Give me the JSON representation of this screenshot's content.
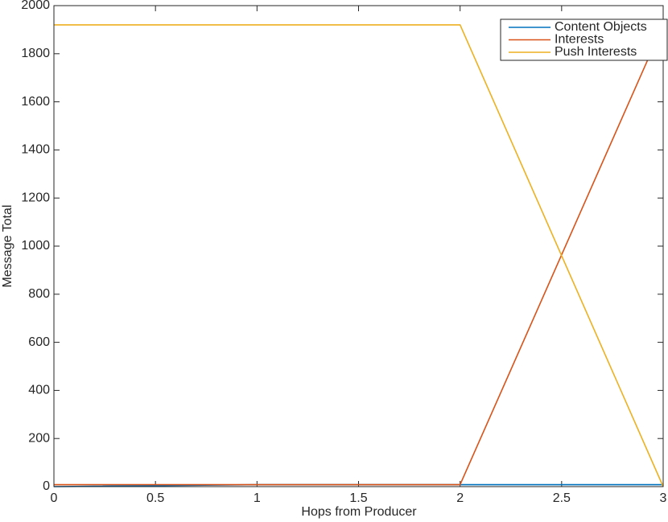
{
  "chart_data": {
    "type": "line",
    "xlabel": "Hops from Producer",
    "ylabel": "Message Total",
    "x": [
      0,
      1,
      2,
      3
    ],
    "series": [
      {
        "name": "Content Objects",
        "color": "#0072bd",
        "values": [
          0,
          8,
          8,
          8
        ]
      },
      {
        "name": "Interests",
        "color": "#d95319",
        "values": [
          8,
          8,
          8,
          1920
        ]
      },
      {
        "name": "Push Interests",
        "color": "#edb120",
        "values": [
          1920,
          1920,
          1920,
          0
        ]
      }
    ],
    "xlim": [
      0,
      3
    ],
    "xticks": [
      0,
      0.5,
      1,
      1.5,
      2,
      2.5,
      3
    ],
    "ylim": [
      0,
      2000
    ],
    "yticks": [
      0,
      200,
      400,
      600,
      800,
      1000,
      1200,
      1400,
      1600,
      1800,
      2000
    ],
    "grid": false,
    "legend": "upper right"
  }
}
